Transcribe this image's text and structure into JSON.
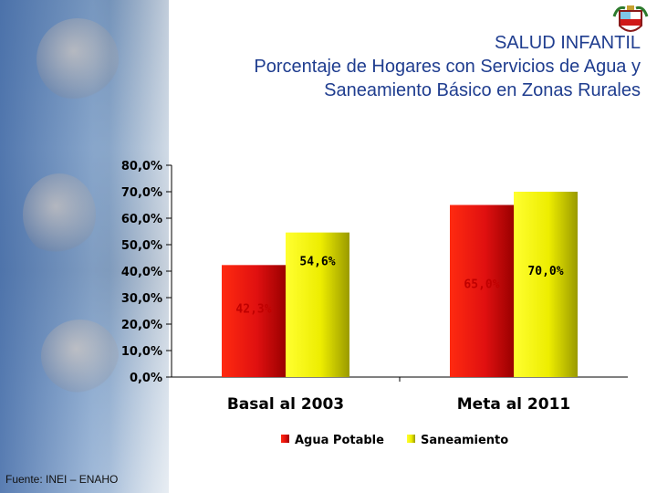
{
  "title": {
    "line1": "SALUD INFANTIL",
    "line2": "Porcentaje de Hogares con Servicios de Agua y",
    "line3": "Saneamiento Básico en Zonas Rurales"
  },
  "source": "Fuente: INEI – ENAHO",
  "colors": {
    "title": "#1f3d8f",
    "agua": "#e01010",
    "saneamiento": "#f2f200",
    "data_label_agua": "#c00000",
    "data_label_san": "#000000"
  },
  "chart_data": {
    "type": "bar",
    "title": "SALUD INFANTIL - Porcentaje de Hogares con Servicios de Agua y Saneamiento Básico en Zonas Rurales",
    "categories": [
      "Basal al 2003",
      "Meta al 2011"
    ],
    "series": [
      {
        "name": "Agua Potable",
        "values": [
          42.3,
          65.0
        ],
        "labels": [
          "42,3%",
          "65,0%"
        ]
      },
      {
        "name": "Saneamiento",
        "values": [
          54.6,
          70.0
        ],
        "labels": [
          "54,6%",
          "70,0%"
        ]
      }
    ],
    "ylim": [
      0,
      80
    ],
    "yticks": [
      "0,0%",
      "10,0%",
      "20,0%",
      "30,0%",
      "40,0%",
      "50,0%",
      "60,0%",
      "70,0%",
      "80,0%"
    ],
    "legend": "bottom",
    "grid": false
  }
}
